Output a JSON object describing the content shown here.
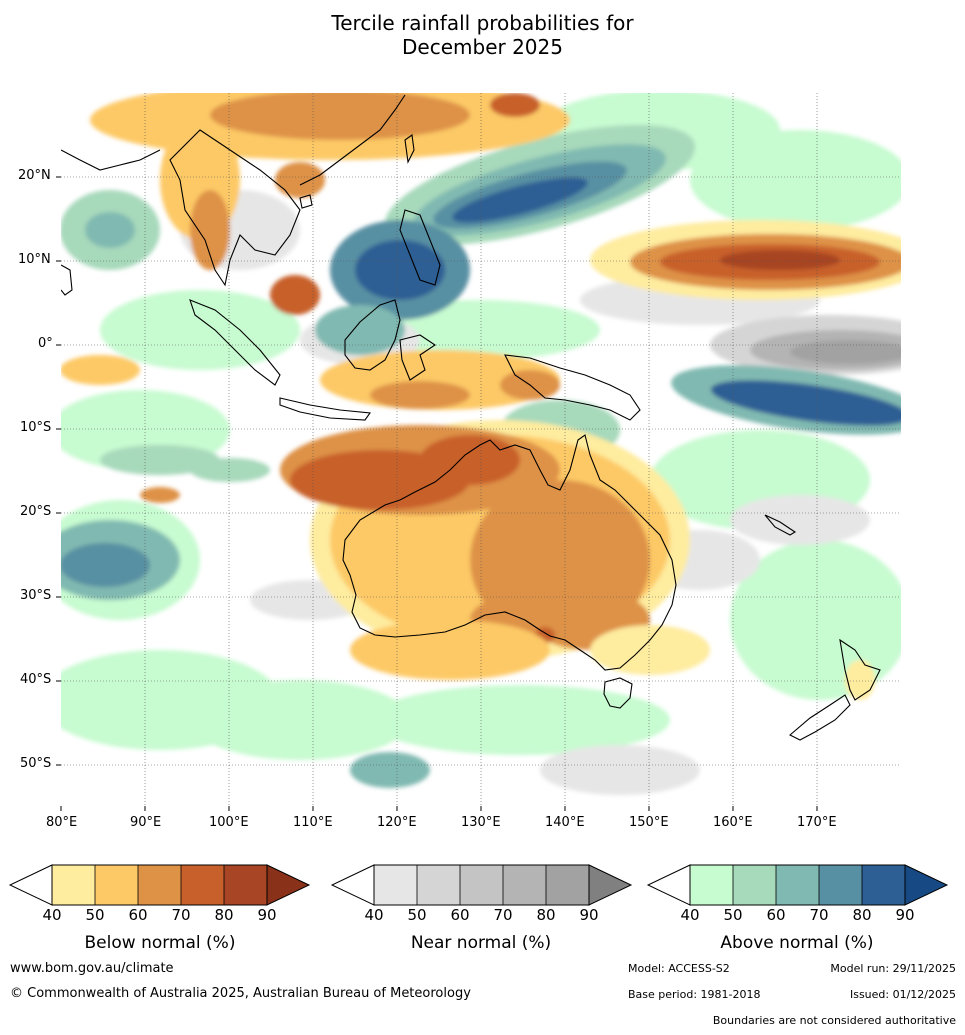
{
  "title": {
    "line1": "Tercile rainfall probabilities for",
    "line2": "December 2025"
  },
  "map": {
    "lon_labels": [
      "80°E",
      "90°E",
      "100°E",
      "110°E",
      "120°E",
      "130°E",
      "140°E",
      "150°E",
      "160°E",
      "170°E"
    ],
    "lat_labels": [
      "20°N",
      "10°N",
      "0°",
      "10°S",
      "20°S",
      "30°S",
      "40°S",
      "50°S"
    ]
  },
  "colorbars": {
    "below": {
      "title": "Below normal (%)",
      "ticks": [
        "40",
        "50",
        "60",
        "70",
        "80",
        "90"
      ],
      "colors": [
        "#ffffff",
        "#feec9f",
        "#fdc966",
        "#de9246",
        "#c8602c",
        "#a74524",
        "#8a3119"
      ]
    },
    "near": {
      "title": "Near normal (%)",
      "ticks": [
        "40",
        "50",
        "60",
        "70",
        "80",
        "90"
      ],
      "colors": [
        "#ffffff",
        "#e6e6e6",
        "#d5d5d5",
        "#c4c4c4",
        "#b4b4b4",
        "#a2a2a2",
        "#808080"
      ]
    },
    "above": {
      "title": "Above normal (%)",
      "ticks": [
        "40",
        "50",
        "60",
        "70",
        "80",
        "90"
      ],
      "colors": [
        "#ffffff",
        "#c7fbd0",
        "#a7d9bb",
        "#80b9b1",
        "#5890a3",
        "#2d5f94",
        "#174a84"
      ]
    }
  },
  "footer": {
    "website": "www.bom.gov.au/climate",
    "copyright": "© Commonwealth of Australia 2025, Australian Bureau of Meteorology",
    "model": "Model: ACCESS-S2",
    "model_run": "Model run: 29/11/2025",
    "base_period": "Base period: 1981-2018",
    "issued": "Issued: 01/12/2025",
    "disclaimer": "Boundaries are not considered authoritative"
  }
}
